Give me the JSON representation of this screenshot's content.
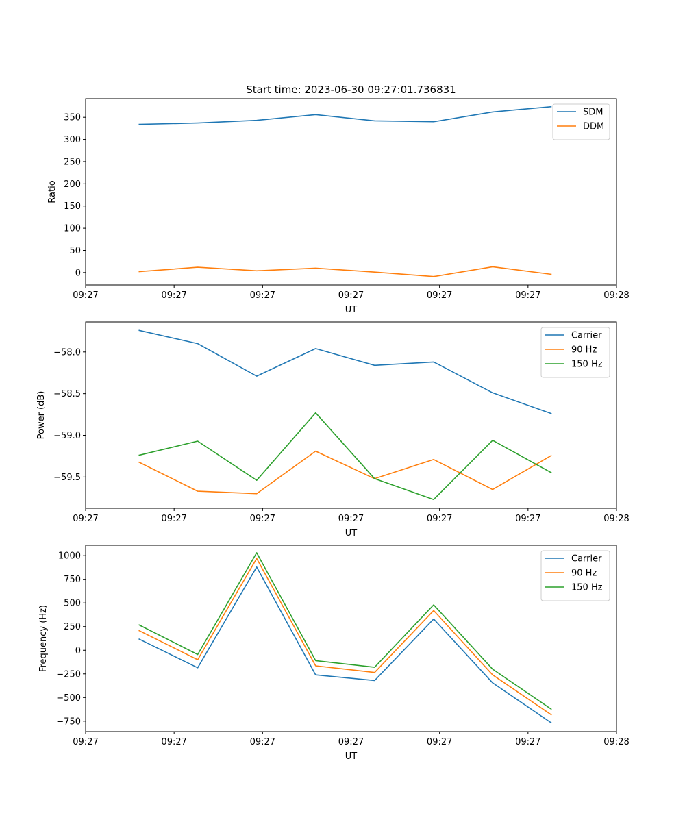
{
  "chart_data": [
    {
      "type": "line",
      "title": "Start time: 2023-06-30 09:27:01.736831",
      "xlabel": "UT",
      "ylabel": "Ratio",
      "x": [
        1,
        2,
        3,
        4,
        5,
        6,
        7,
        8
      ],
      "xlim": [
        0.1,
        9.1
      ],
      "x_ticks": [
        0.1,
        1.6,
        3.1,
        4.6,
        6.1,
        7.6,
        9.1
      ],
      "x_tick_labels": [
        "09:27",
        "09:27",
        "09:27",
        "09:27",
        "09:27",
        "09:27",
        "09:28"
      ],
      "ylim": [
        -28,
        392
      ],
      "y_ticks": [
        0,
        50,
        100,
        150,
        200,
        250,
        300,
        350
      ],
      "y_tick_labels": [
        "0",
        "50",
        "100",
        "150",
        "200",
        "250",
        "300",
        "350"
      ],
      "legend_position": "upper right",
      "grid": false,
      "series": [
        {
          "name": "SDM",
          "color": "#1f77b4",
          "values": [
            334,
            337,
            343,
            356,
            342,
            340,
            362,
            374
          ]
        },
        {
          "name": "DDM",
          "color": "#ff7f0e",
          "values": [
            2,
            12,
            4,
            10,
            1,
            -9,
            13,
            -4
          ]
        }
      ]
    },
    {
      "type": "line",
      "title": "",
      "xlabel": "UT",
      "ylabel": "Power (dB)",
      "x": [
        1,
        2,
        3,
        4,
        5,
        6,
        7,
        8
      ],
      "xlim": [
        0.1,
        9.1
      ],
      "x_ticks": [
        0.1,
        1.6,
        3.1,
        4.6,
        6.1,
        7.6,
        9.1
      ],
      "x_tick_labels": [
        "09:27",
        "09:27",
        "09:27",
        "09:27",
        "09:27",
        "09:27",
        "09:28"
      ],
      "ylim": [
        -59.875,
        -57.64
      ],
      "y_ticks": [
        -58.0,
        -58.5,
        -59.0,
        -59.5
      ],
      "y_tick_labels": [
        "−58.0",
        "−58.5",
        "−59.0",
        "−59.5"
      ],
      "legend_position": "upper right",
      "grid": false,
      "series": [
        {
          "name": "Carrier",
          "color": "#1f77b4",
          "values": [
            -57.74,
            -57.9,
            -58.29,
            -57.96,
            -58.16,
            -58.12,
            -58.49,
            -58.74
          ]
        },
        {
          "name": "90 Hz",
          "color": "#ff7f0e",
          "values": [
            -59.32,
            -59.67,
            -59.7,
            -59.19,
            -59.52,
            -59.29,
            -59.65,
            -59.24
          ]
        },
        {
          "name": "150 Hz",
          "color": "#2ca02c",
          "values": [
            -59.24,
            -59.07,
            -59.54,
            -58.73,
            -59.52,
            -59.77,
            -59.06,
            -59.45
          ]
        }
      ]
    },
    {
      "type": "line",
      "title": "",
      "xlabel": "UT",
      "ylabel": "Frequency (Hz)",
      "x": [
        1,
        2,
        3,
        4,
        5,
        6,
        7,
        8
      ],
      "xlim": [
        0.1,
        9.1
      ],
      "x_ticks": [
        0.1,
        1.6,
        3.1,
        4.6,
        6.1,
        7.6,
        9.1
      ],
      "x_tick_labels": [
        "09:27",
        "09:27",
        "09:27",
        "09:27",
        "09:27",
        "09:27",
        "09:28"
      ],
      "ylim": [
        -860,
        1110
      ],
      "y_ticks": [
        1000,
        750,
        500,
        250,
        0,
        -250,
        -500,
        -750
      ],
      "y_tick_labels": [
        "1000",
        "750",
        "500",
        "250",
        "0",
        "−250",
        "−500",
        "−750"
      ],
      "legend_position": "upper right",
      "grid": false,
      "series": [
        {
          "name": "Carrier",
          "color": "#1f77b4",
          "values": [
            120,
            -185,
            880,
            -260,
            -320,
            330,
            -345,
            -770
          ]
        },
        {
          "name": "90 Hz",
          "color": "#ff7f0e",
          "values": [
            210,
            -100,
            970,
            -165,
            -235,
            420,
            -260,
            -685
          ]
        },
        {
          "name": "150 Hz",
          "color": "#2ca02c",
          "values": [
            270,
            -45,
            1030,
            -110,
            -180,
            480,
            -200,
            -625
          ]
        }
      ]
    }
  ]
}
